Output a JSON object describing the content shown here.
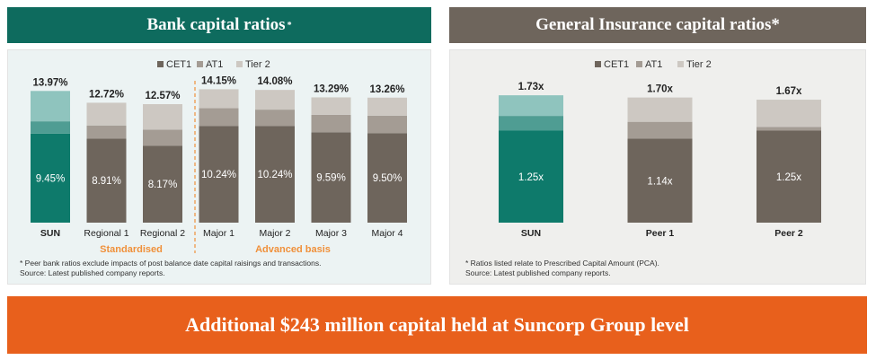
{
  "bank_panel": {
    "title": "Bank capital ratios",
    "title_mark": "*",
    "footnote_lines": [
      "* Peer bank ratios exclude impacts of post balance date capital raisings and transactions.",
      "Source: Latest published company reports."
    ]
  },
  "insurance_panel": {
    "title": "General Insurance capital ratios*",
    "footnote_lines": [
      "* Ratios listed relate to Prescribed Capital Amount (PCA).",
      "Source: Latest published company reports."
    ]
  },
  "banner": {
    "text": "Additional $243 million capital held at Suncorp Group level"
  },
  "colors": {
    "bank_header": "#0e6b5e",
    "ins_header": "#6e655c",
    "banner": "#e8601c",
    "divider": "#f0903a",
    "suncorp_cet1": "#0e7a6b",
    "suncorp_at1": "#4f9d93",
    "suncorp_tier2": "#8fc4be",
    "peer_cet1": "#6e655c",
    "peer_at1": "#a49c94",
    "peer_tier2": "#cdc8c2"
  },
  "chart_data": [
    {
      "type": "bar",
      "stacked": true,
      "legend": [
        "CET1",
        "AT1",
        "Tier 2"
      ],
      "legend_position": "top-center",
      "categories": [
        "SUN",
        "Regional 1",
        "Regional 2",
        "Major 1",
        "Major 2",
        "Major 3",
        "Major 4"
      ],
      "totals": [
        "13.97%",
        "12.72%",
        "12.57%",
        "14.15%",
        "14.08%",
        "13.29%",
        "13.26%"
      ],
      "total_values": [
        13.97,
        12.72,
        12.57,
        14.15,
        14.08,
        13.29,
        13.26
      ],
      "cet1_labels": [
        "9.45%",
        "8.91%",
        "8.17%",
        "10.24%",
        "10.24%",
        "9.59%",
        "9.50%"
      ],
      "series": [
        {
          "name": "CET1",
          "values": [
            9.45,
            8.91,
            8.17,
            10.24,
            10.24,
            9.59,
            9.5
          ]
        },
        {
          "name": "AT1",
          "values": [
            1.3,
            1.4,
            1.7,
            1.9,
            1.75,
            1.85,
            1.85
          ]
        },
        {
          "name": "Tier 2",
          "values": [
            3.22,
            2.41,
            2.7,
            2.01,
            2.09,
            1.85,
            1.91
          ]
        }
      ],
      "groups": [
        {
          "label": "Standardised",
          "from": 1,
          "to": 2
        },
        {
          "label": "Advanced basis",
          "from": 3,
          "to": 6
        }
      ],
      "grid": false
    },
    {
      "type": "bar",
      "stacked": true,
      "legend": [
        "CET1",
        "AT1",
        "Tier 2"
      ],
      "legend_position": "top-center",
      "categories": [
        "SUN",
        "Peer 1",
        "Peer 2"
      ],
      "totals": [
        "1.73x",
        "1.70x",
        "1.67x"
      ],
      "total_values": [
        1.73,
        1.7,
        1.67
      ],
      "cet1_labels": [
        "1.25x",
        "1.14x",
        "1.25x"
      ],
      "series": [
        {
          "name": "CET1",
          "values": [
            1.25,
            1.14,
            1.25
          ]
        },
        {
          "name": "AT1",
          "values": [
            0.2,
            0.23,
            0.05
          ]
        },
        {
          "name": "Tier 2",
          "values": [
            0.28,
            0.33,
            0.37
          ]
        }
      ],
      "grid": false
    }
  ]
}
